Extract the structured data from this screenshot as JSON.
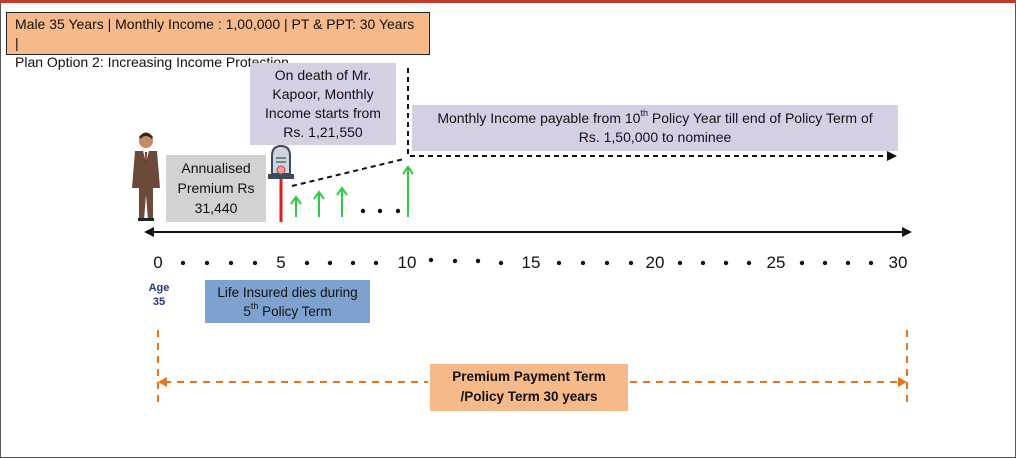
{
  "header": {
    "line1": "Male 35 Years | Monthly Income : 1,00,000 | PT & PPT: 30 Years |",
    "line2": "Plan Option 2: Increasing Income Protection"
  },
  "death_note": "On death of Mr. Kapoor, Monthly Income starts from Rs. 1,21,550",
  "income_note": {
    "line1_before": "Monthly Income payable from 10",
    "line1_sup": "th",
    "line1_after": " Policy Year till end of Policy Term of",
    "line2": "Rs. 1,50,000 to nominee"
  },
  "premium_note": "Annualised Premium Rs 31,440",
  "dies_note": {
    "line1": "Life Insured dies during",
    "line2_num": "5",
    "line2_sup": "th",
    "line2_after": " Policy Term"
  },
  "term_note": {
    "line1": "Premium Payment Term",
    "line2": "/Policy Term 30 years"
  },
  "age": {
    "label": "Age",
    "value": "35"
  },
  "timeline": {
    "ticks": [
      "0",
      "5",
      "10",
      "15",
      "20",
      "25",
      "30"
    ],
    "dots": "• • •"
  },
  "colors": {
    "header_fill": "#f6b98a",
    "purple_fill": "#d6cfe4",
    "grey_fill": "#d2d2d2",
    "blue_fill": "#7ea2cf",
    "arrow_green": "#2ecc40",
    "death_red": "#e01b1b",
    "term_orange": "#e8751a"
  },
  "icons": [
    "person-icon",
    "tombstone-icon"
  ]
}
